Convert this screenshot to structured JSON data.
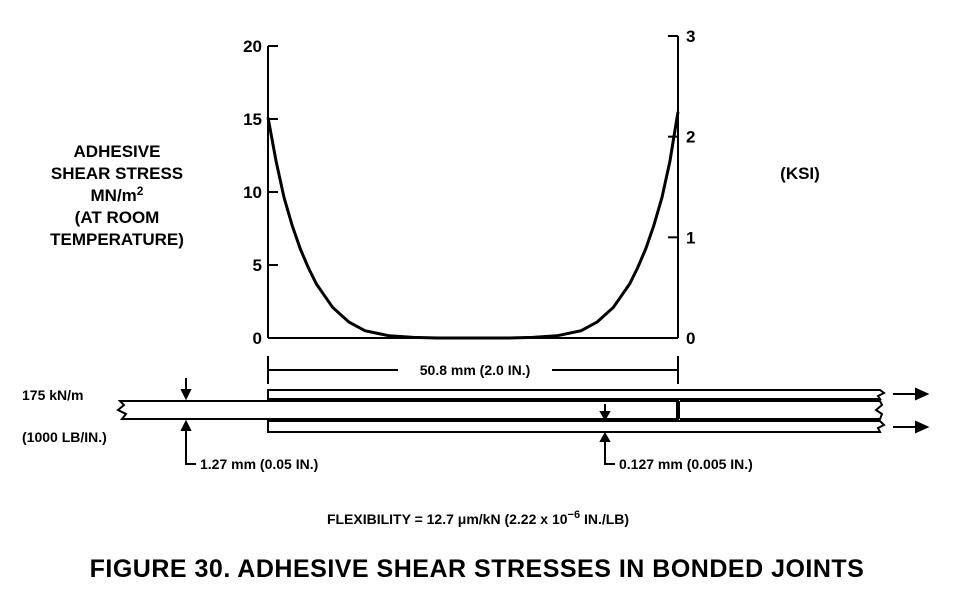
{
  "chart_data": {
    "type": "line",
    "title": "",
    "ylabel_left": [
      "ADHESIVE",
      "SHEAR STRESS",
      "MN/m",
      "(AT ROOM",
      "TEMPERATURE)"
    ],
    "ylabel_left_superscript": "2",
    "ylabel_right": "(KSI)",
    "y_left_ticks": [
      "0",
      "5",
      "10",
      "15",
      "20"
    ],
    "y_right_ticks": [
      "0",
      "1",
      "2",
      "3"
    ],
    "ylim_left": [
      0,
      20
    ],
    "ylim_right": [
      0,
      3
    ],
    "x_length_label": "50.8 mm (2.0 IN.)",
    "series": [
      {
        "x_mm": [
          0,
          1,
          2,
          3,
          4,
          5,
          6,
          8,
          10,
          12,
          15,
          18,
          21,
          25.4,
          29.8,
          32.8,
          35.8,
          38.8,
          40.8,
          42.8,
          44.8,
          45.8,
          46.8,
          47.8,
          48.8,
          49.8,
          50.8
        ],
        "y_mpa": [
          15.1,
          12.1,
          9.6,
          7.7,
          6.1,
          4.8,
          3.7,
          2.1,
          1.1,
          0.5,
          0.15,
          0.04,
          0.0,
          0.0,
          0.0,
          0.04,
          0.15,
          0.5,
          1.1,
          2.1,
          3.7,
          4.8,
          6.1,
          7.7,
          9.6,
          12.1,
          15.5
        ]
      }
    ]
  },
  "joint": {
    "load_si": "175 kN/m",
    "load_us": "(1000 LB/IN.)",
    "adherend_thickness": "1.27 mm  (0.05 IN.)",
    "adhesive_thickness": "0.127 mm  (0.005 IN.)"
  },
  "flexibility": {
    "prefix": "FLEXIBILITY = 12.7 μm/kN  (2.22 x 10",
    "exponent": "−6",
    "suffix": " IN./LB)"
  },
  "caption": "FIGURE 30.  ADHESIVE SHEAR STRESSES IN BONDED JOINTS"
}
